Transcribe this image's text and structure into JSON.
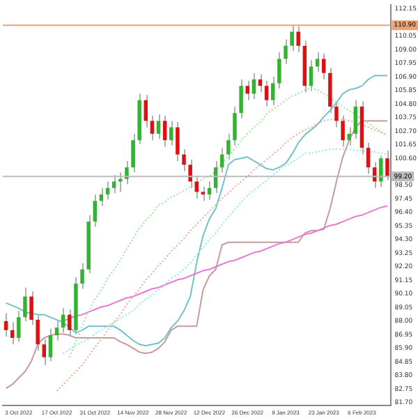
{
  "chart_data": {
    "type": "candlestick",
    "categories": [
      null,
      null,
      "3 Oct 2022",
      null,
      null,
      null,
      null,
      null,
      "17 Oct 2022",
      null,
      null,
      null,
      null,
      null,
      "31 Oct 2022",
      null,
      null,
      null,
      null,
      null,
      "14 Nov 2022",
      null,
      null,
      null,
      null,
      null,
      "28 Nov 2022",
      null,
      null,
      null,
      null,
      null,
      "12 Dec 2022",
      null,
      null,
      null,
      null,
      null,
      "26 Dec 2022",
      null,
      null,
      null,
      null,
      null,
      "9 Jan 2023",
      null,
      null,
      null,
      null,
      null,
      "23 Jan 2023",
      null,
      null,
      null,
      null,
      null,
      "6 Feb 2023",
      null,
      null,
      null,
      null
    ],
    "ohlc": [
      [
        88.0,
        88.6,
        86.8,
        87.3
      ],
      [
        87.3,
        87.9,
        86.2,
        86.7
      ],
      [
        86.7,
        88.8,
        86.4,
        88.3
      ],
      [
        88.3,
        90.6,
        88.0,
        89.9
      ],
      [
        89.9,
        90.3,
        87.7,
        88.1
      ],
      [
        88.1,
        88.5,
        85.7,
        86.2
      ],
      [
        86.2,
        86.6,
        84.6,
        85.2
      ],
      [
        85.2,
        87.4,
        84.9,
        86.9
      ],
      [
        86.9,
        88.0,
        86.5,
        87.5
      ],
      [
        87.5,
        89.0,
        87.1,
        88.5
      ],
      [
        88.5,
        88.9,
        86.8,
        87.3
      ],
      [
        87.3,
        91.4,
        87.0,
        90.9
      ],
      [
        90.9,
        92.5,
        90.5,
        92.0
      ],
      [
        92.0,
        96.2,
        91.7,
        95.7
      ],
      [
        95.7,
        97.8,
        95.3,
        97.3
      ],
      [
        97.3,
        98.3,
        96.9,
        97.8
      ],
      [
        97.8,
        98.8,
        97.4,
        98.3
      ],
      [
        98.3,
        99.3,
        97.9,
        98.8
      ],
      [
        98.8,
        99.5,
        98.0,
        99.0
      ],
      [
        99.0,
        100.4,
        98.6,
        99.9
      ],
      [
        99.9,
        102.5,
        99.5,
        102.0
      ],
      [
        102.0,
        105.6,
        101.7,
        105.1
      ],
      [
        105.1,
        105.5,
        103.0,
        103.5
      ],
      [
        103.5,
        103.9,
        102.0,
        102.5
      ],
      [
        102.5,
        104.0,
        102.1,
        103.5
      ],
      [
        103.5,
        103.9,
        101.5,
        102.0
      ],
      [
        102.0,
        103.5,
        101.6,
        103.0
      ],
      [
        103.0,
        103.4,
        100.4,
        100.9
      ],
      [
        100.9,
        101.3,
        99.6,
        100.1
      ],
      [
        100.1,
        100.5,
        98.3,
        98.8
      ],
      [
        98.8,
        99.2,
        97.5,
        98.0
      ],
      [
        98.0,
        98.4,
        97.3,
        97.8
      ],
      [
        97.8,
        98.8,
        97.4,
        98.3
      ],
      [
        98.3,
        100.4,
        97.9,
        99.9
      ],
      [
        99.9,
        101.4,
        99.5,
        100.9
      ],
      [
        100.9,
        102.5,
        100.5,
        102.0
      ],
      [
        102.0,
        104.6,
        101.6,
        104.1
      ],
      [
        104.1,
        106.7,
        103.7,
        106.2
      ],
      [
        106.2,
        106.6,
        105.1,
        105.6
      ],
      [
        105.6,
        107.2,
        105.2,
        106.7
      ],
      [
        106.7,
        107.1,
        105.7,
        106.2
      ],
      [
        106.2,
        106.6,
        104.6,
        105.1
      ],
      [
        105.1,
        106.9,
        104.7,
        106.4
      ],
      [
        106.4,
        108.8,
        106.0,
        108.3
      ],
      [
        108.3,
        109.8,
        107.9,
        109.3
      ],
      [
        109.3,
        110.9,
        108.9,
        110.4
      ],
      [
        110.4,
        110.8,
        108.8,
        109.3
      ],
      [
        109.3,
        109.7,
        105.7,
        106.2
      ],
      [
        106.2,
        108.2,
        105.8,
        107.7
      ],
      [
        107.7,
        108.8,
        107.3,
        108.3
      ],
      [
        108.3,
        108.7,
        106.7,
        107.2
      ],
      [
        107.2,
        107.6,
        104.1,
        104.6
      ],
      [
        104.6,
        105.0,
        103.0,
        103.5
      ],
      [
        103.5,
        103.9,
        101.5,
        102.0
      ],
      [
        102.0,
        103.0,
        101.6,
        102.5
      ],
      [
        102.5,
        105.1,
        102.1,
        104.6
      ],
      [
        104.6,
        105.0,
        100.9,
        101.4
      ],
      [
        101.4,
        101.8,
        99.4,
        99.9
      ],
      [
        99.9,
        100.3,
        98.3,
        98.8
      ],
      [
        98.8,
        100.8,
        98.4,
        100.6
      ],
      [
        100.6,
        101.2,
        98.9,
        99.2
      ]
    ],
    "colors": [
      "#dd1111",
      "#dd1111",
      "#33b233",
      "#33b233",
      "#dd1111",
      "#dd1111",
      "#dd1111",
      "#33b233",
      "#33b233",
      "#33b233",
      "#dd1111",
      "#33b233",
      "#33b233",
      "#33b233",
      "#33b233",
      "#33b233",
      "#33b233",
      "#33b233",
      "#33b233",
      "#33b233",
      "#33b233",
      "#33b233",
      "#dd1111",
      "#dd1111",
      "#33b233",
      "#dd1111",
      "#33b233",
      "#dd1111",
      "#dd1111",
      "#dd1111",
      "#dd1111",
      "#dd1111",
      "#33b233",
      "#33b233",
      "#33b233",
      "#33b233",
      "#33b233",
      "#33b233",
      "#dd1111",
      "#33b233",
      "#dd1111",
      "#dd1111",
      "#33b233",
      "#33b233",
      "#33b233",
      "#33b233",
      "#dd1111",
      "#dd1111",
      "#33b233",
      "#33b233",
      "#dd1111",
      "#dd1111",
      "#dd1111",
      "#dd1111",
      "#33b233",
      "#33b233",
      "#dd1111",
      "#dd1111",
      "#dd1111",
      "#33b233",
      "#dd1111"
    ],
    "series": [
      {
        "type": "line",
        "color": "#99e699",
        "line_style": "dotted",
        "values": [
          null,
          null,
          null,
          null,
          null,
          null,
          null,
          null,
          null,
          null,
          85.2,
          86.4,
          87.6,
          88.8,
          89.7,
          90.4,
          91.3,
          92.0,
          92.7,
          93.6,
          94.4,
          95.2,
          95.8,
          96.3,
          97.0,
          97.2,
          97.6,
          97.8,
          98.1,
          98.4,
          98.7,
          99.0,
          99.2,
          99.6,
          100.2,
          100.8,
          101.3,
          102.0,
          102.5,
          103.0,
          103.4,
          104.0,
          104.4,
          104.7,
          105.1,
          105.4,
          105.6,
          105.9,
          106.0,
          105.9,
          105.6,
          105.3,
          104.9,
          104.6,
          104.3,
          104.0,
          103.6,
          103.3,
          103.0,
          102.7,
          102.3
        ]
      },
      {
        "type": "line",
        "color": "#f5a58c",
        "line_style": "dotted",
        "values": [
          null,
          null,
          null,
          null,
          null,
          null,
          null,
          null,
          82.6,
          83.1,
          83.6,
          84.1,
          84.6,
          85.3,
          86.0,
          86.6,
          87.3,
          87.9,
          88.5,
          89.3,
          89.9,
          90.5,
          91.2,
          91.7,
          92.3,
          92.8,
          93.4,
          93.9,
          94.4,
          95.0,
          95.5,
          96.0,
          96.5,
          97.0,
          97.5,
          97.9,
          98.4,
          98.8,
          99.2,
          99.7,
          100.1,
          100.5,
          100.9,
          101.3,
          101.8,
          102.2,
          102.5,
          102.8,
          103.0,
          103.3,
          103.5,
          103.6,
          103.6,
          103.6,
          103.5,
          103.4,
          103.2,
          103.0,
          102.8,
          102.6,
          102.4
        ]
      },
      {
        "type": "line",
        "color": "#8ee6ea",
        "line_style": "dotted",
        "values": [
          null,
          null,
          null,
          null,
          null,
          null,
          null,
          null,
          null,
          85.5,
          85.8,
          86.1,
          86.4,
          86.6,
          87.0,
          87.3,
          87.6,
          87.9,
          88.2,
          88.5,
          88.8,
          89.3,
          89.7,
          90.0,
          90.4,
          90.8,
          91.3,
          91.6,
          92.0,
          92.5,
          93.1,
          93.7,
          94.3,
          94.8,
          95.5,
          96.1,
          96.6,
          97.2,
          97.7,
          98.1,
          98.5,
          98.9,
          99.3,
          99.7,
          100.0,
          100.3,
          100.6,
          101.0,
          101.0,
          101.1,
          101.2,
          101.3,
          101.3,
          101.3,
          101.3,
          101.2,
          101.2,
          101.1,
          101.1,
          101.0,
          100.9
        ]
      },
      {
        "type": "line",
        "color": "#e67ad6",
        "line_style": "solid",
        "values": [
          null,
          null,
          null,
          null,
          null,
          null,
          null,
          null,
          null,
          88.0,
          88.2,
          88.4,
          88.5,
          88.7,
          88.9,
          89.1,
          89.2,
          89.4,
          89.6,
          89.8,
          89.9,
          90.1,
          90.3,
          90.5,
          90.6,
          90.8,
          91.0,
          91.2,
          91.3,
          91.5,
          91.7,
          91.9,
          92.0,
          92.2,
          92.4,
          92.6,
          92.7,
          92.9,
          93.1,
          93.3,
          93.4,
          93.6,
          93.8,
          94.0,
          94.1,
          94.3,
          94.5,
          94.7,
          94.8,
          95.0,
          95.2,
          95.4,
          95.5,
          95.7,
          95.9,
          96.1,
          96.2,
          96.4,
          96.6,
          96.8,
          96.9
        ]
      },
      {
        "type": "line",
        "color": "#6fc3c8",
        "line_style": "solid",
        "values": [
          89.4,
          89.2,
          89.0,
          88.7,
          88.6,
          88.5,
          88.5,
          88.3,
          88.1,
          87.9,
          87.5,
          87.1,
          87.3,
          87.6,
          87.6,
          87.6,
          87.6,
          87.6,
          87.3,
          86.9,
          86.5,
          86.2,
          86.1,
          86.2,
          86.3,
          86.7,
          87.5,
          88.0,
          88.8,
          89.9,
          92.5,
          94.6,
          95.9,
          96.7,
          98.3,
          100.1,
          100.5,
          100.6,
          100.7,
          100.4,
          100.1,
          99.8,
          99.7,
          99.9,
          100.2,
          100.9,
          101.8,
          102.4,
          102.8,
          103.2,
          103.8,
          104.3,
          104.9,
          105.6,
          105.9,
          106.0,
          106.2,
          106.7,
          107.0,
          107.0,
          107.0
        ]
      },
      {
        "type": "line",
        "color": "#c99a9a",
        "line_style": "solid",
        "values": [
          82.8,
          83.1,
          83.6,
          84.1,
          84.9,
          86.2,
          86.7,
          86.9,
          87.0,
          87.0,
          86.9,
          86.7,
          86.7,
          86.7,
          86.7,
          86.7,
          86.7,
          86.7,
          86.4,
          86.2,
          85.9,
          85.6,
          85.5,
          85.6,
          85.9,
          86.4,
          87.3,
          87.6,
          87.6,
          87.6,
          87.6,
          90.4,
          91.5,
          92.0,
          93.9,
          94.1,
          94.1,
          94.1,
          94.1,
          94.1,
          94.1,
          94.1,
          94.1,
          94.1,
          94.1,
          94.1,
          94.1,
          94.8,
          95.0,
          95.0,
          95.1,
          96.7,
          98.8,
          100.7,
          102.0,
          103.0,
          103.5,
          103.5,
          103.5,
          103.5,
          103.5
        ]
      }
    ],
    "ylim": [
      81.45,
      112.45
    ],
    "yticks": [
      {
        "value": 81.7,
        "label": "81.70"
      },
      {
        "value": 82.75,
        "label": "82.75"
      },
      {
        "value": 83.8,
        "label": "83.80"
      },
      {
        "value": 84.85,
        "label": "84.85"
      },
      {
        "value": 85.9,
        "label": "85.90"
      },
      {
        "value": 86.95,
        "label": "86.95"
      },
      {
        "value": 88.0,
        "label": "88.00"
      },
      {
        "value": 89.05,
        "label": "89.05"
      },
      {
        "value": 90.1,
        "label": "90.10"
      },
      {
        "value": 91.15,
        "label": "91.15"
      },
      {
        "value": 92.2,
        "label": "92.20"
      },
      {
        "value": 93.25,
        "label": "93.25"
      },
      {
        "value": 94.3,
        "label": "94.30"
      },
      {
        "value": 95.35,
        "label": "95.35"
      },
      {
        "value": 96.4,
        "label": "96.40"
      },
      {
        "value": 97.45,
        "label": "97.45"
      },
      {
        "value": 98.5,
        "label": "98.50"
      },
      {
        "value": 100.6,
        "label": "100.60"
      },
      {
        "value": 101.65,
        "label": "101.65"
      },
      {
        "value": 102.7,
        "label": "102.70"
      },
      {
        "value": 103.75,
        "label": "103.75"
      },
      {
        "value": 104.8,
        "label": "104.80"
      },
      {
        "value": 105.85,
        "label": "105.85"
      },
      {
        "value": 106.9,
        "label": "106.90"
      },
      {
        "value": 107.95,
        "label": "107.95"
      },
      {
        "value": 109.0,
        "label": "109.00"
      },
      {
        "value": 110.05,
        "label": "110.05"
      },
      {
        "value": 112.15,
        "label": "112.15"
      }
    ],
    "ref_lines": [
      {
        "axis": "y",
        "value": 110.9,
        "label": "110.90",
        "color": "#f0a070"
      },
      {
        "axis": "y",
        "value": 99.2,
        "label": "99.20",
        "color": "#bbbbbb"
      }
    ],
    "grid": false,
    "legend": false
  }
}
